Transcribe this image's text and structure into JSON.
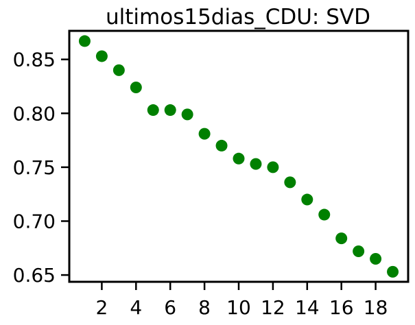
{
  "chart_data": {
    "type": "scatter",
    "title": "ultimos15dias_CDU: SVD",
    "xlabel": "",
    "ylabel": "",
    "x": [
      1,
      2,
      3,
      4,
      5,
      6,
      7,
      8,
      9,
      10,
      11,
      12,
      13,
      14,
      15,
      16,
      17,
      18,
      19
    ],
    "y": [
      0.867,
      0.853,
      0.84,
      0.824,
      0.803,
      0.803,
      0.799,
      0.781,
      0.77,
      0.758,
      0.753,
      0.75,
      0.736,
      0.72,
      0.706,
      0.684,
      0.672,
      0.665,
      0.653
    ],
    "xlim": [
      0.1,
      19.9
    ],
    "ylim": [
      0.6437,
      0.8765
    ],
    "xticks": [
      2,
      4,
      6,
      8,
      10,
      12,
      14,
      16,
      18
    ],
    "xtick_labels": [
      "2",
      "4",
      "6",
      "8",
      "10",
      "12",
      "14",
      "16",
      "18"
    ],
    "yticks": [
      0.65,
      0.7,
      0.75,
      0.8,
      0.85
    ],
    "ytick_labels": [
      "0.65",
      "0.70",
      "0.75",
      "0.80",
      "0.85"
    ],
    "grid": false,
    "marker_color": "#008000"
  }
}
